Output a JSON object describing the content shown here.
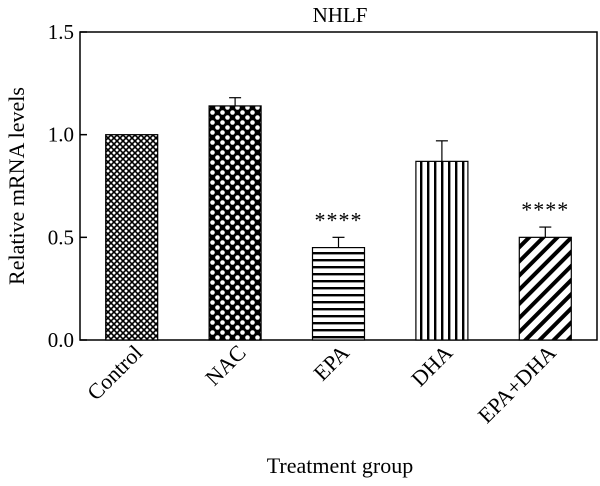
{
  "chart_data": {
    "type": "bar",
    "title": "NHLF",
    "xlabel": "Treatment group",
    "ylabel": "Relative mRNA levels",
    "ylim": [
      0,
      1.5
    ],
    "yticks": [
      "0.0",
      "0.5",
      "1.0",
      "1.5"
    ],
    "categories": [
      "Control",
      "NAC",
      "EPA",
      "DHA",
      "EPA+DHA"
    ],
    "values": [
      1.0,
      1.14,
      0.45,
      0.87,
      0.5
    ],
    "errors": [
      0.0,
      0.04,
      0.05,
      0.1,
      0.05
    ],
    "significance": [
      "",
      "",
      "****",
      "",
      "****"
    ],
    "patterns": [
      "crosshatch-dense",
      "checker-dots",
      "horizontal-lines",
      "vertical-lines",
      "diagonal-lines"
    ],
    "bar_color": "#000000",
    "grid": false,
    "legend": "none"
  }
}
